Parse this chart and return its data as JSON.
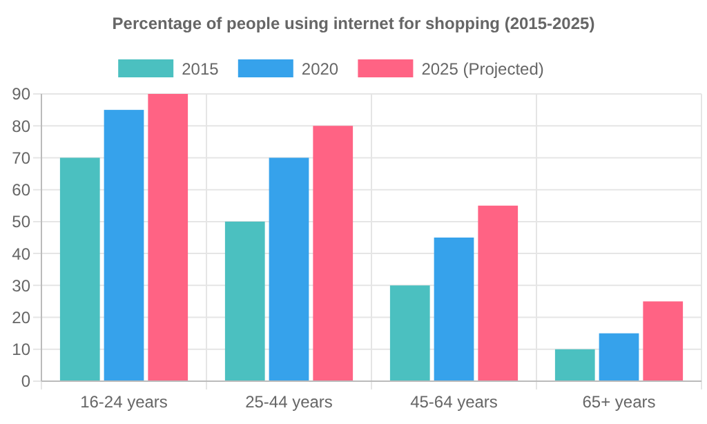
{
  "chart_data": {
    "type": "bar",
    "title": "Percentage of people using internet for shopping (2015-2025)",
    "categories": [
      "16-24 years",
      "25-44 years",
      "45-64 years",
      "65+ years"
    ],
    "series": [
      {
        "name": "2015",
        "color": "#4bc0c0",
        "values": [
          70,
          50,
          30,
          10
        ]
      },
      {
        "name": "2020",
        "color": "#36a2eb",
        "values": [
          85,
          70,
          45,
          15
        ]
      },
      {
        "name": "2025 (Projected)",
        "color": "#ff6384",
        "values": [
          90,
          80,
          55,
          25
        ]
      }
    ],
    "ylim": [
      0,
      90
    ],
    "yticks": [
      0,
      10,
      20,
      30,
      40,
      50,
      60,
      70,
      80,
      90
    ],
    "grid": true,
    "legend": "top"
  }
}
